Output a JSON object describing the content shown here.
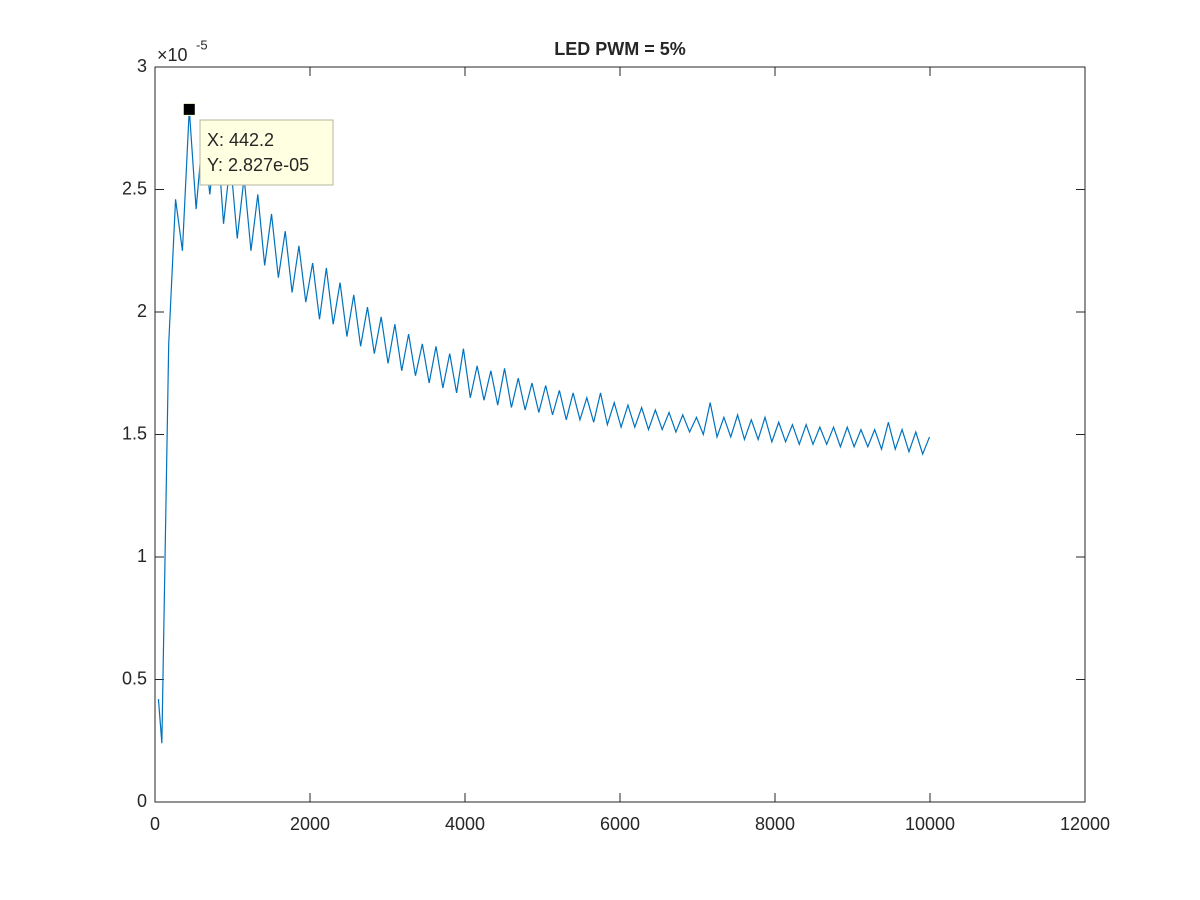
{
  "chart_data": {
    "type": "line",
    "title": "LED PWM = 5%",
    "axis_multiplier": {
      "base": "×10",
      "exponent": "-5"
    },
    "xlim": [
      0,
      12000
    ],
    "xticks": [
      0,
      2000,
      4000,
      6000,
      8000,
      10000,
      12000
    ],
    "ylim": [
      0,
      3
    ],
    "yticks": [
      0,
      0.5,
      1,
      1.5,
      2,
      2.5,
      3
    ],
    "grid": false,
    "x": [
      44.2,
      88.4,
      176.9,
      265.3,
      353.8,
      442.2,
      530.6,
      619.1,
      707.5,
      796.0,
      884.4,
      972.8,
      1061.3,
      1149.7,
      1238.2,
      1326.6,
      1415.0,
      1503.5,
      1591.9,
      1680.4,
      1768.8,
      1857.2,
      1945.7,
      2034.1,
      2122.6,
      2211.0,
      2299.4,
      2387.9,
      2476.3,
      2564.8,
      2653.2,
      2741.6,
      2830.1,
      2918.5,
      3007.0,
      3095.4,
      3183.8,
      3272.3,
      3360.7,
      3449.2,
      3537.6,
      3626.0,
      3714.5,
      3802.9,
      3891.4,
      3979.8,
      4068.2,
      4156.7,
      4245.1,
      4333.6,
      4422.0,
      4510.4,
      4598.9,
      4687.3,
      4775.8,
      4864.2,
      4952.6,
      5041.1,
      5129.5,
      5218.0,
      5306.4,
      5394.8,
      5483.3,
      5571.7,
      5660.2,
      5748.6,
      5837.0,
      5925.5,
      6013.9,
      6102.4,
      6190.8,
      6279.2,
      6367.7,
      6456.1,
      6544.6,
      6633.0,
      6721.4,
      6809.9,
      6898.3,
      6986.8,
      7075.2,
      7163.6,
      7252.1,
      7340.5,
      7429.0,
      7517.4,
      7605.8,
      7694.3,
      7782.7,
      7871.2,
      7959.6,
      8048.0,
      8136.5,
      8224.9,
      8313.4,
      8401.8,
      8490.2,
      8578.7,
      8667.1,
      8755.6,
      8844.0,
      8932.4,
      9020.9,
      9109.3,
      9197.8,
      9286.2,
      9374.6,
      9463.1,
      9551.5,
      9640.0,
      9728.4,
      9816.8,
      9905.3,
      9993.7
    ],
    "series": [
      {
        "color": "#0072bd",
        "values": [
          0.42,
          0.24,
          1.87,
          2.46,
          2.25,
          2.827,
          2.42,
          2.74,
          2.48,
          2.76,
          2.36,
          2.62,
          2.3,
          2.55,
          2.25,
          2.48,
          2.19,
          2.4,
          2.14,
          2.33,
          2.08,
          2.27,
          2.04,
          2.2,
          1.97,
          2.18,
          1.95,
          2.12,
          1.9,
          2.07,
          1.86,
          2.02,
          1.83,
          1.98,
          1.79,
          1.95,
          1.76,
          1.91,
          1.74,
          1.87,
          1.71,
          1.86,
          1.69,
          1.83,
          1.67,
          1.85,
          1.65,
          1.78,
          1.64,
          1.76,
          1.62,
          1.77,
          1.61,
          1.73,
          1.6,
          1.71,
          1.59,
          1.7,
          1.58,
          1.68,
          1.56,
          1.67,
          1.56,
          1.65,
          1.55,
          1.67,
          1.54,
          1.63,
          1.53,
          1.62,
          1.53,
          1.61,
          1.52,
          1.6,
          1.52,
          1.59,
          1.51,
          1.58,
          1.51,
          1.57,
          1.5,
          1.63,
          1.49,
          1.57,
          1.49,
          1.58,
          1.48,
          1.56,
          1.48,
          1.57,
          1.47,
          1.55,
          1.47,
          1.54,
          1.46,
          1.54,
          1.46,
          1.53,
          1.46,
          1.53,
          1.45,
          1.53,
          1.45,
          1.52,
          1.45,
          1.52,
          1.44,
          1.55,
          1.44,
          1.52,
          1.43,
          1.51,
          1.42,
          1.49
        ]
      }
    ],
    "datatip": {
      "x": 442.2,
      "y": 2.827,
      "x_label": "X: 442.2",
      "y_label": "Y: 2.827e-05"
    }
  }
}
